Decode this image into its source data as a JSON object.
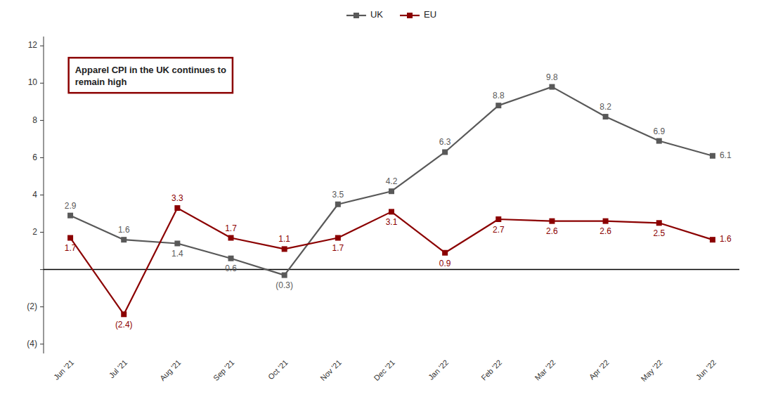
{
  "chart_data": {
    "type": "line",
    "categories": [
      "Jun '21",
      "Jul '21",
      "Aug '21",
      "Sep '21",
      "Oct '21",
      "Nov '21",
      "Dec '21",
      "Jan '22",
      "Feb '22",
      "Mar '22",
      "Apr '22",
      "May '22",
      "Jun '22"
    ],
    "series": [
      {
        "name": "UK",
        "color": "#595959",
        "marker": "square",
        "line_style": "solid",
        "values": [
          2.9,
          1.6,
          1.4,
          0.6,
          -0.3,
          3.5,
          4.2,
          6.3,
          8.8,
          9.8,
          8.2,
          6.9,
          6.1
        ],
        "value_labels": [
          "2.9",
          "1.6",
          "1.4",
          "0.6",
          "(0.3)",
          "3.5",
          "4.2",
          "6.3",
          "8.8",
          "9.8",
          "8.2",
          "6.9",
          "6.1"
        ]
      },
      {
        "name": "EU",
        "color": "#8B0000",
        "marker": "square",
        "line_style": "solid",
        "values": [
          1.7,
          -2.4,
          3.3,
          1.7,
          1.1,
          1.7,
          3.1,
          0.9,
          2.7,
          2.6,
          2.6,
          2.5,
          1.6
        ],
        "value_labels": [
          "1.7",
          "(2.4)",
          "3.3",
          "1.7",
          "1.1",
          "1.7",
          "3.1",
          "0.9",
          "2.7",
          "2.6",
          "2.6",
          "2.5",
          "1.6"
        ]
      }
    ],
    "ylim": [
      -4.5,
      12.5
    ],
    "yticks": [
      {
        "value": -4,
        "label": "(4)"
      },
      {
        "value": -2,
        "label": "(2)"
      },
      {
        "value": 0,
        "label": null
      },
      2,
      4,
      6,
      8,
      10,
      12
    ],
    "annotations": [
      {
        "text": "Apparel CPI in the UK continues to\nremain high",
        "color": "#8B0000"
      }
    ],
    "data_labels": true,
    "grid": false,
    "legend": "top"
  }
}
